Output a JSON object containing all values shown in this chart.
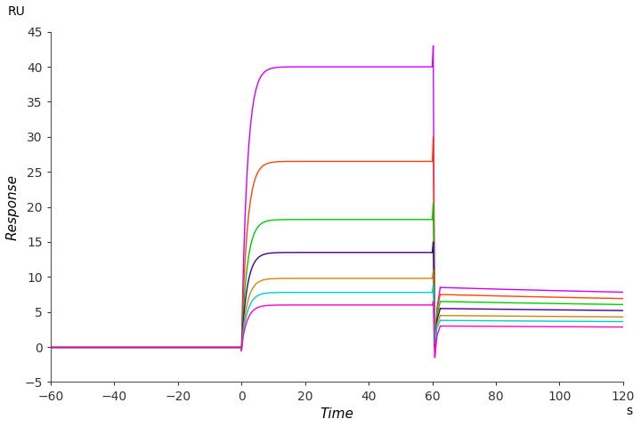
{
  "title": "RU",
  "xlabel": "Time",
  "ylabel": "Response",
  "xunit": "s",
  "xlim": [
    -60,
    120
  ],
  "ylim": [
    -5,
    45
  ],
  "xticks": [
    -60,
    -40,
    -20,
    0,
    20,
    40,
    60,
    80,
    100,
    120
  ],
  "yticks": [
    -5,
    0,
    5,
    10,
    15,
    20,
    25,
    30,
    35,
    40,
    45
  ],
  "background_color": "#ffffff",
  "curves": [
    {
      "color": "#cc00ff",
      "plateau": 40.0,
      "spike_up": 43.0,
      "spike_down": -1.5,
      "dissoc_fast_end": 8.5,
      "dissoc_end_120": 6.2,
      "ka": 0.55,
      "kd_fast": 0.25,
      "kd_slow": 0.006
    },
    {
      "color": "#ff4400",
      "plateau": 26.5,
      "spike_up": 30.0,
      "spike_down": 0.5,
      "dissoc_fast_end": 7.5,
      "dissoc_end_120": 5.5,
      "ka": 0.55,
      "kd_fast": 0.25,
      "kd_slow": 0.006
    },
    {
      "color": "#00cc00",
      "plateau": 18.2,
      "spike_up": 20.5,
      "spike_down": 0.0,
      "dissoc_fast_end": 6.5,
      "dissoc_end_120": 5.0,
      "ka": 0.55,
      "kd_fast": 0.25,
      "kd_slow": 0.006
    },
    {
      "color": "#440088",
      "plateau": 13.5,
      "spike_up": 15.0,
      "spike_down": 0.0,
      "dissoc_fast_end": 5.5,
      "dissoc_end_120": 4.5,
      "ka": 0.55,
      "kd_fast": 0.25,
      "kd_slow": 0.006
    },
    {
      "color": "#cc8800",
      "plateau": 9.8,
      "spike_up": 11.0,
      "spike_down": 0.5,
      "dissoc_fast_end": 4.5,
      "dissoc_end_120": 3.8,
      "ka": 0.55,
      "kd_fast": 0.25,
      "kd_slow": 0.006
    },
    {
      "color": "#00cccc",
      "plateau": 7.8,
      "spike_up": 8.8,
      "spike_down": 0.5,
      "dissoc_fast_end": 3.8,
      "dissoc_end_120": 3.2,
      "ka": 0.55,
      "kd_fast": 0.25,
      "kd_slow": 0.006
    },
    {
      "color": "#ff00cc",
      "plateau": 6.0,
      "spike_up": 6.5,
      "spike_down": -1.5,
      "dissoc_fast_end": 3.0,
      "dissoc_end_120": 2.5,
      "ka": 0.55,
      "kd_fast": 0.25,
      "kd_slow": 0.006
    }
  ],
  "t_assoc_start": 0,
  "t_assoc_end": 60,
  "t_dissoc_end": 120,
  "figsize": [
    7.2,
    4.8
  ],
  "dpi": 100
}
